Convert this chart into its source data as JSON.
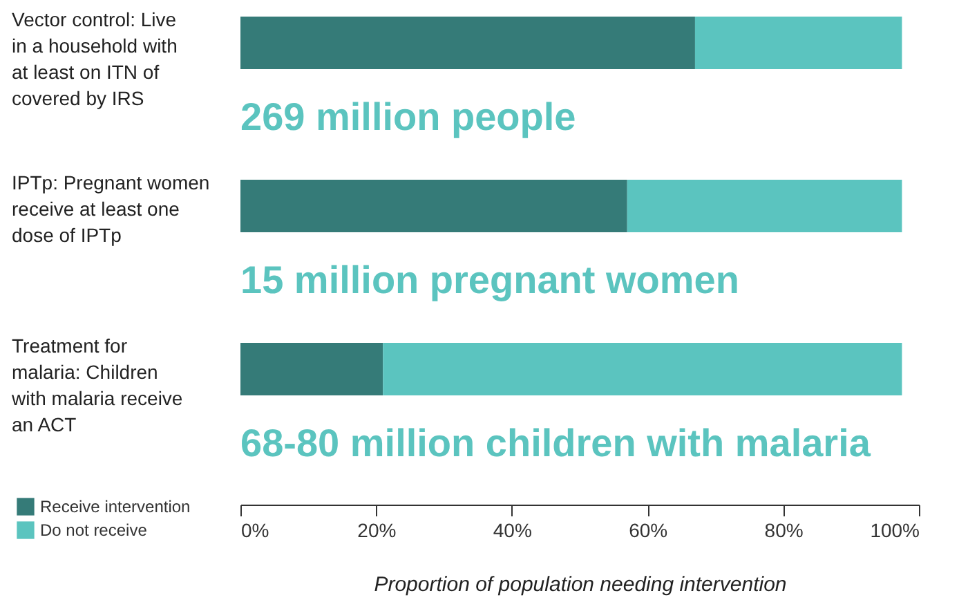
{
  "chart_data": {
    "type": "bar",
    "orientation": "horizontal",
    "stacked": true,
    "xlabel": "Proportion of population needing intervention",
    "categories": [
      "Vector control: Live in a household with at least on ITN of covered by IRS",
      "IPTp: Pregnant women receive at least one dose of IPTp",
      "Treatment for malaria: Children with malaria receive an ACT"
    ],
    "series": [
      {
        "name": "Receive intervention",
        "color": "#357b78",
        "values": [
          67,
          57,
          21
        ]
      },
      {
        "name": "Do not receive",
        "color": "#5bc4bf",
        "values": [
          30.5,
          40.5,
          76.5
        ]
      }
    ],
    "xlim": [
      0,
      100
    ],
    "xticks": [
      {
        "value": 0,
        "label": "0%"
      },
      {
        "value": 20,
        "label": "20%"
      },
      {
        "value": 40,
        "label": "40%"
      },
      {
        "value": 60,
        "label": "60%"
      },
      {
        "value": 80,
        "label": "80%"
      },
      {
        "value": 100,
        "label": "100%"
      }
    ],
    "annotations": [
      "269 million people",
      "15 million pregnant women",
      "68-80 million children with malaria"
    ],
    "grid": false,
    "legend": "bottom left"
  }
}
